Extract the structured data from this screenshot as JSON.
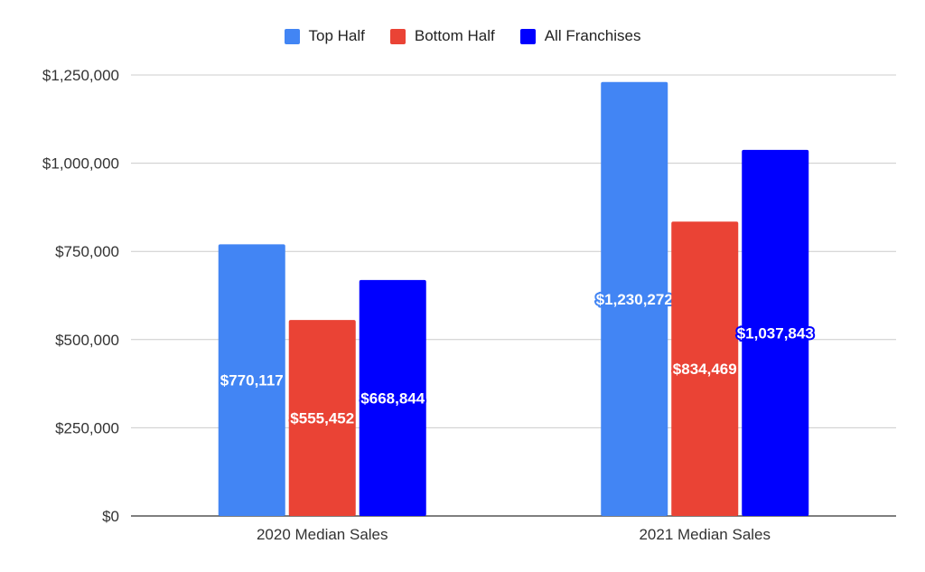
{
  "chart_data": {
    "type": "bar",
    "title": "",
    "xlabel": "",
    "ylabel": "",
    "categories": [
      "2020 Median Sales",
      "2021 Median Sales"
    ],
    "series": [
      {
        "name": "Top Half",
        "color": "#4285f4",
        "values": [
          770117,
          1230272
        ],
        "labels": [
          "$770,117",
          "$1,230,272"
        ]
      },
      {
        "name": "Bottom Half",
        "color": "#ea4335",
        "values": [
          555452,
          834469
        ],
        "labels": [
          "$555,452",
          "$834,469"
        ]
      },
      {
        "name": "All Franchises",
        "color": "#0000ff",
        "values": [
          668844,
          1037843
        ],
        "labels": [
          "$668,844",
          "$1,037,843"
        ]
      }
    ],
    "ylim": [
      0,
      1250000
    ],
    "yticks": [
      {
        "value": 0,
        "label": "$0"
      },
      {
        "value": 250000,
        "label": "$250,000"
      },
      {
        "value": 500000,
        "label": "$500,000"
      },
      {
        "value": 750000,
        "label": "$750,000"
      },
      {
        "value": 1000000,
        "label": "$1,000,000"
      },
      {
        "value": 1250000,
        "label": "$1,250,000"
      }
    ],
    "grid": true,
    "legend_position": "top-center",
    "data_labels": true
  }
}
